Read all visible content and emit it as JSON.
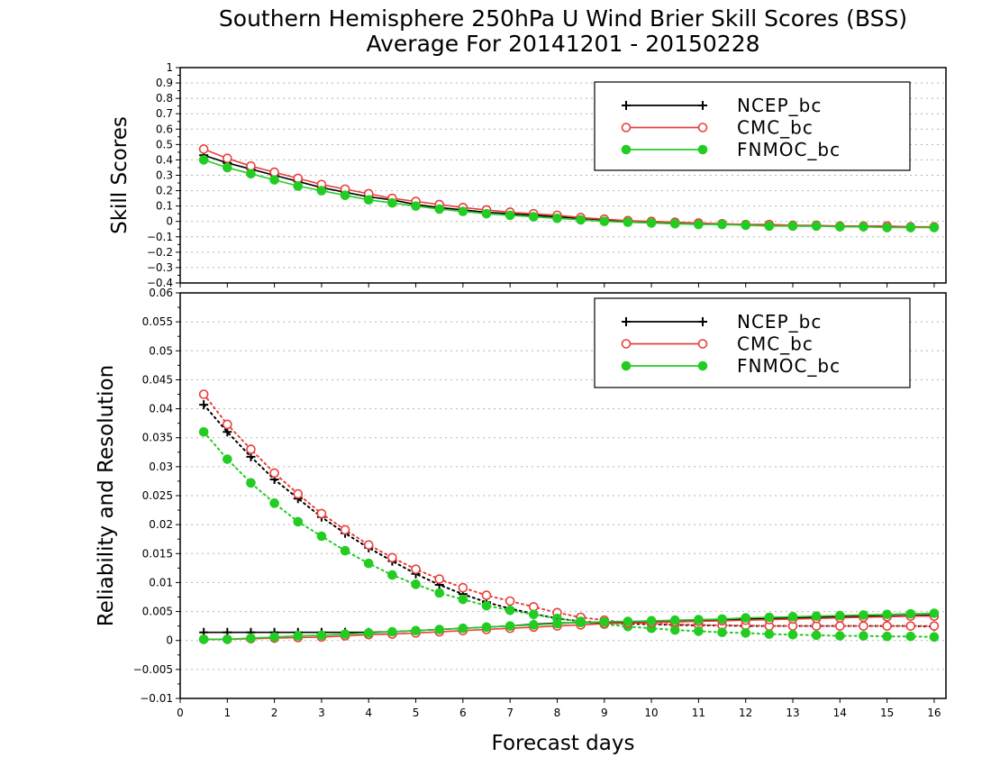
{
  "title_line1": "Southern Hemisphere 250hPa U Wind Brier Skill Scores (BSS)",
  "title_line2": "Average For 20141201 - 20150228",
  "xlabel": "Forecast days",
  "colors": {
    "NCEP_bc": "#000000",
    "CMC_bc": "#e8403c",
    "FNMOC_bc": "#22cc22"
  },
  "chart_data": [
    {
      "type": "line",
      "ylabel": "Skill Scores",
      "xlim": [
        0,
        16.25
      ],
      "ylim": [
        -0.4,
        1
      ],
      "xticks": [
        0,
        1,
        2,
        3,
        4,
        5,
        6,
        7,
        8,
        9,
        10,
        11,
        12,
        13,
        14,
        15,
        16
      ],
      "yticks": [
        -0.4,
        -0.3,
        -0.2,
        -0.1,
        0,
        0.1,
        0.2,
        0.3,
        0.4,
        0.5,
        0.6,
        0.7,
        0.8,
        0.9,
        1
      ],
      "grid": true,
      "legend": {
        "placement": "top-right",
        "entries": [
          "NCEP_bc",
          "CMC_bc",
          "FNMOC_bc"
        ]
      },
      "x": [
        0.5,
        1,
        1.5,
        2,
        2.5,
        3,
        3.5,
        4,
        4.5,
        5,
        5.5,
        6,
        6.5,
        7,
        7.5,
        8,
        8.5,
        9,
        9.5,
        10,
        10.5,
        11,
        11.5,
        12,
        12.5,
        13,
        13.5,
        14,
        14.5,
        15,
        15.5,
        16
      ],
      "series": [
        {
          "name": "NCEP_bc",
          "marker": "plus",
          "linestyle": "solid",
          "values": [
            0.43,
            0.38,
            0.34,
            0.3,
            0.26,
            0.22,
            0.19,
            0.16,
            0.14,
            0.11,
            0.09,
            0.075,
            0.06,
            0.05,
            0.04,
            0.03,
            0.02,
            0.01,
            0.0,
            -0.005,
            -0.01,
            -0.015,
            -0.02,
            -0.02,
            -0.025,
            -0.03,
            -0.03,
            -0.03,
            -0.035,
            -0.035,
            -0.035,
            -0.04
          ]
        },
        {
          "name": "CMC_bc",
          "marker": "open-circle",
          "linestyle": "solid",
          "values": [
            0.47,
            0.41,
            0.36,
            0.32,
            0.28,
            0.24,
            0.21,
            0.18,
            0.15,
            0.13,
            0.11,
            0.09,
            0.075,
            0.06,
            0.05,
            0.04,
            0.025,
            0.015,
            0.005,
            0.0,
            -0.005,
            -0.01,
            -0.015,
            -0.02,
            -0.02,
            -0.025,
            -0.025,
            -0.03,
            -0.03,
            -0.03,
            -0.035,
            -0.035
          ]
        },
        {
          "name": "FNMOC_bc",
          "marker": "filled-circle",
          "linestyle": "solid",
          "values": [
            0.4,
            0.35,
            0.31,
            0.27,
            0.23,
            0.2,
            0.17,
            0.14,
            0.12,
            0.1,
            0.08,
            0.065,
            0.05,
            0.04,
            0.03,
            0.02,
            0.01,
            0.0,
            -0.005,
            -0.01,
            -0.015,
            -0.02,
            -0.02,
            -0.025,
            -0.03,
            -0.03,
            -0.03,
            -0.035,
            -0.035,
            -0.04,
            -0.04,
            -0.04
          ]
        }
      ]
    },
    {
      "type": "line",
      "ylabel": "Reliability and Resolution",
      "xlim": [
        0,
        16.25
      ],
      "ylim": [
        -0.01,
        0.06
      ],
      "xticks": [
        0,
        1,
        2,
        3,
        4,
        5,
        6,
        7,
        8,
        9,
        10,
        11,
        12,
        13,
        14,
        15,
        16
      ],
      "yticks": [
        -0.01,
        -0.005,
        0,
        0.005,
        0.01,
        0.015,
        0.02,
        0.025,
        0.03,
        0.035,
        0.04,
        0.045,
        0.05,
        0.055,
        0.06
      ],
      "grid": true,
      "legend": {
        "placement": "top-right",
        "entries": [
          "NCEP_bc",
          "CMC_bc",
          "FNMOC_bc"
        ]
      },
      "x": [
        0.5,
        1,
        1.5,
        2,
        2.5,
        3,
        3.5,
        4,
        4.5,
        5,
        5.5,
        6,
        6.5,
        7,
        7.5,
        8,
        8.5,
        9,
        9.5,
        10,
        10.5,
        11,
        11.5,
        12,
        12.5,
        13,
        13.5,
        14,
        14.5,
        15,
        15.5,
        16
      ],
      "series": [
        {
          "name": "NCEP_bc",
          "role": "reliability",
          "marker": "plus",
          "linestyle": "dotted",
          "values": [
            0.0407,
            0.036,
            0.0317,
            0.0278,
            0.0245,
            0.0213,
            0.0185,
            0.016,
            0.0137,
            0.0115,
            0.0096,
            0.008,
            0.0066,
            0.0055,
            0.0046,
            0.0038,
            0.0033,
            0.003,
            0.0029,
            0.0028,
            0.0027,
            0.0026,
            0.0026,
            0.0025,
            0.0025,
            0.0025,
            0.0025,
            0.0025,
            0.0025,
            0.0025,
            0.0025,
            0.0024
          ]
        },
        {
          "name": "CMC_bc",
          "role": "reliability",
          "marker": "open-circle",
          "linestyle": "dotted",
          "values": [
            0.0425,
            0.0373,
            0.033,
            0.0289,
            0.0253,
            0.0219,
            0.0191,
            0.0165,
            0.0143,
            0.0123,
            0.0106,
            0.0091,
            0.0078,
            0.0068,
            0.0058,
            0.0048,
            0.004,
            0.0035,
            0.0031,
            0.0029,
            0.0028,
            0.0027,
            0.0026,
            0.0026,
            0.0025,
            0.0025,
            0.0025,
            0.0025,
            0.0025,
            0.0025,
            0.0025,
            0.0025
          ]
        },
        {
          "name": "FNMOC_bc",
          "role": "reliability",
          "marker": "filled-circle",
          "linestyle": "dotted",
          "values": [
            0.036,
            0.0313,
            0.0272,
            0.0237,
            0.0205,
            0.018,
            0.0155,
            0.0133,
            0.0113,
            0.0097,
            0.0082,
            0.0071,
            0.006,
            0.0052,
            0.0045,
            0.0038,
            0.0033,
            0.0028,
            0.0024,
            0.0021,
            0.0018,
            0.0016,
            0.0014,
            0.0013,
            0.0011,
            0.001,
            0.0009,
            0.0008,
            0.0008,
            0.0007,
            0.0007,
            0.0006
          ]
        },
        {
          "name": "NCEP_bc",
          "role": "resolution",
          "marker": "plus",
          "linestyle": "solid",
          "values": [
            0.0014,
            0.0014,
            0.0014,
            0.0014,
            0.0014,
            0.0014,
            0.0014,
            0.0014,
            0.0015,
            0.0017,
            0.0019,
            0.0021,
            0.0023,
            0.0025,
            0.0028,
            0.003,
            0.0031,
            0.0031,
            0.0032,
            0.0033,
            0.0034,
            0.0035,
            0.0036,
            0.0037,
            0.0038,
            0.0039,
            0.004,
            0.0041,
            0.0042,
            0.0042,
            0.0043,
            0.0044
          ]
        },
        {
          "name": "CMC_bc",
          "role": "resolution",
          "marker": "open-circle",
          "linestyle": "solid",
          "values": [
            0.0002,
            0.0002,
            0.0003,
            0.0004,
            0.0005,
            0.0006,
            0.0008,
            0.001,
            0.0011,
            0.0013,
            0.0015,
            0.0017,
            0.0019,
            0.0021,
            0.0023,
            0.0025,
            0.0027,
            0.0029,
            0.003,
            0.0031,
            0.0032,
            0.0033,
            0.0034,
            0.0035,
            0.0036,
            0.0037,
            0.0038,
            0.0039,
            0.004,
            0.0041,
            0.0042,
            0.0042
          ]
        },
        {
          "name": "FNMOC_bc",
          "role": "resolution",
          "marker": "filled-circle",
          "linestyle": "solid",
          "values": [
            0.0002,
            0.0002,
            0.0004,
            0.0006,
            0.0008,
            0.0009,
            0.0011,
            0.0013,
            0.0015,
            0.0017,
            0.0019,
            0.0021,
            0.0023,
            0.0025,
            0.0027,
            0.0029,
            0.0031,
            0.0032,
            0.0033,
            0.0034,
            0.0035,
            0.0036,
            0.0037,
            0.0039,
            0.004,
            0.0041,
            0.0042,
            0.0043,
            0.0044,
            0.0045,
            0.0046,
            0.0047
          ]
        }
      ]
    }
  ]
}
